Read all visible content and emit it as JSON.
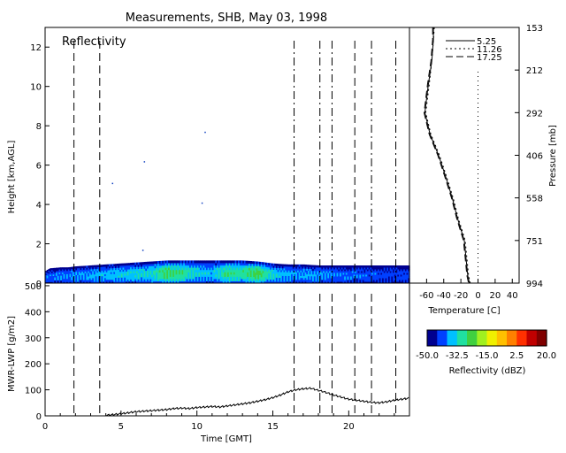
{
  "title": "Measurements, SHB, May 03, 1998",
  "chart_data": [
    {
      "id": "reflectivity",
      "type": "heatmap",
      "panel_label": "Reflectivity",
      "xlabel": "",
      "ylabel": "Height [km,AGL]",
      "xlim": [
        0,
        24
      ],
      "ylim": [
        0,
        13
      ],
      "yticks": [
        0,
        2,
        4,
        6,
        8,
        10,
        12
      ],
      "yticklabels": [
        "0",
        "2",
        "4",
        "6",
        "8",
        "10",
        "12"
      ],
      "cloud_top_profile": {
        "time": [
          0,
          0.3,
          1.0,
          1.5,
          2.0,
          3.0,
          4.0,
          5.0,
          6.0,
          7.0,
          8.0,
          9.0,
          10.0,
          11.0,
          12.0,
          13.0,
          14.0,
          14.5,
          15.0,
          16.0,
          17.0,
          18.0,
          19.0,
          20.0,
          21.0,
          22.0,
          23.0,
          24.0
        ],
        "height_km": [
          0.6,
          0.75,
          0.8,
          0.8,
          0.85,
          0.9,
          0.95,
          1.0,
          1.05,
          1.1,
          1.15,
          1.15,
          1.15,
          1.15,
          1.15,
          1.15,
          1.1,
          1.05,
          1.0,
          0.95,
          0.95,
          0.9,
          0.9,
          0.9,
          0.9,
          0.9,
          0.9,
          0.9
        ]
      },
      "core_profile": {
        "time": [
          0.5,
          2,
          4,
          6,
          7,
          8,
          9,
          10,
          11,
          12,
          13,
          14,
          15,
          16,
          18,
          20,
          22,
          24
        ],
        "dbz": [
          -40,
          -38,
          -36,
          -34,
          -33,
          -26,
          -28,
          -34,
          -36,
          -28,
          -30,
          -24,
          -34,
          -37,
          -38,
          -40,
          -42,
          -42
        ]
      },
      "vertical_markers": [
        {
          "time": 1.9,
          "style": "dashed"
        },
        {
          "time": 3.6,
          "style": "dashed"
        },
        {
          "time": 16.4,
          "style": "dashdot"
        },
        {
          "time": 18.1,
          "style": "dashdot"
        },
        {
          "time": 18.9,
          "style": "dashdot"
        },
        {
          "time": 20.4,
          "style": "dashed"
        },
        {
          "time": 21.5,
          "style": "dashdot"
        },
        {
          "time": 23.1,
          "style": "dashdot"
        }
      ]
    },
    {
      "id": "mwr_lwp",
      "type": "line",
      "xlabel": "Time [GMT]",
      "ylabel": "MWR-LWP [g/m2]",
      "xlim": [
        0,
        24
      ],
      "ylim": [
        0,
        510
      ],
      "xticks": [
        0,
        5,
        10,
        15,
        20
      ],
      "xticklabels": [
        "0",
        "5",
        "10",
        "15",
        "20"
      ],
      "yticks": [
        0,
        100,
        200,
        300,
        400,
        500
      ],
      "yticklabels": [
        "0",
        "100",
        "200",
        "300",
        "400",
        "500"
      ],
      "series": [
        {
          "x": [
            4.0,
            4.5,
            5.0,
            5.5,
            6.0,
            6.5,
            7.0,
            7.5,
            8.0,
            8.5,
            9.0,
            9.5,
            10.0,
            10.5,
            11.0,
            11.5,
            12.0,
            12.5,
            13.0,
            13.5,
            14.0,
            14.5,
            15.0,
            15.5,
            16.0,
            16.5,
            17.0,
            17.5,
            18.0,
            18.5,
            19.0,
            19.5,
            20.0,
            20.5,
            21.0,
            21.5,
            22.0,
            22.5,
            23.0,
            23.5,
            24.0
          ],
          "y": [
            2,
            5,
            8,
            12,
            16,
            18,
            20,
            22,
            24,
            28,
            30,
            28,
            32,
            34,
            36,
            34,
            38,
            42,
            46,
            50,
            56,
            62,
            70,
            80,
            92,
            100,
            104,
            106,
            98,
            90,
            80,
            72,
            64,
            60,
            56,
            52,
            50,
            54,
            60,
            64,
            68
          ]
        }
      ],
      "vertical_markers": [
        1.9,
        3.6,
        16.4,
        18.1,
        18.9,
        20.4,
        21.5,
        23.1
      ]
    },
    {
      "id": "temperature_profile",
      "type": "line",
      "xlabel": "Temperature [C]",
      "ylabel": "Pressure [mb]",
      "xlim": [
        -80,
        48
      ],
      "xticks": [
        -60,
        -40,
        -20,
        0,
        20,
        40
      ],
      "xticklabels": [
        "-60",
        "-40",
        "-20",
        "0",
        "20",
        "40"
      ],
      "pressure_ticks": [
        153,
        212,
        292,
        406,
        558,
        751,
        994
      ],
      "pressure_ticklabels": [
        "153",
        "212",
        "292",
        "406",
        "558",
        "751",
        "994"
      ],
      "series": [
        {
          "name": "5.25",
          "pressure": [
            153,
            170,
            200,
            240,
            292,
            350,
            406,
            480,
            558,
            650,
            751,
            850,
            950,
            994
          ],
          "temperature": [
            -52,
            -52,
            -54,
            -58,
            -62,
            -56,
            -46,
            -38,
            -30,
            -24,
            -16,
            -14,
            -12,
            -10
          ]
        },
        {
          "name": "11.26",
          "pressure": [
            153,
            170,
            200,
            240,
            292,
            350,
            406,
            480,
            558,
            650,
            751,
            850,
            950,
            994
          ],
          "temperature": [
            -51,
            -52,
            -54,
            -57,
            -61,
            -55,
            -45,
            -37,
            -29,
            -23,
            -15,
            -13,
            -11,
            -9
          ]
        },
        {
          "name": "17.25",
          "pressure": [
            153,
            170,
            200,
            240,
            292,
            350,
            406,
            480,
            558,
            650,
            751,
            850,
            950,
            994
          ],
          "temperature": [
            -53,
            -53,
            -55,
            -59,
            -63,
            -57,
            -47,
            -39,
            -31,
            -25,
            -17,
            -15,
            -13,
            -11
          ]
        }
      ],
      "zero_line": 0
    },
    {
      "id": "colorbar",
      "type": "heatmap",
      "xlabel": "Reflectivity (dBZ)",
      "range": [
        -50,
        20
      ],
      "ticks": [
        -50,
        -32.5,
        -15,
        2.5,
        20
      ],
      "ticklabels": [
        "-50.0",
        "-32.5",
        "-15.0",
        "2.5",
        "20.0"
      ],
      "colors": [
        "#00008f",
        "#0040ff",
        "#00c0ff",
        "#20e0a0",
        "#40d040",
        "#a0f020",
        "#f0f000",
        "#ffc000",
        "#ff8000",
        "#ff3000",
        "#c00000",
        "#800000"
      ]
    }
  ]
}
